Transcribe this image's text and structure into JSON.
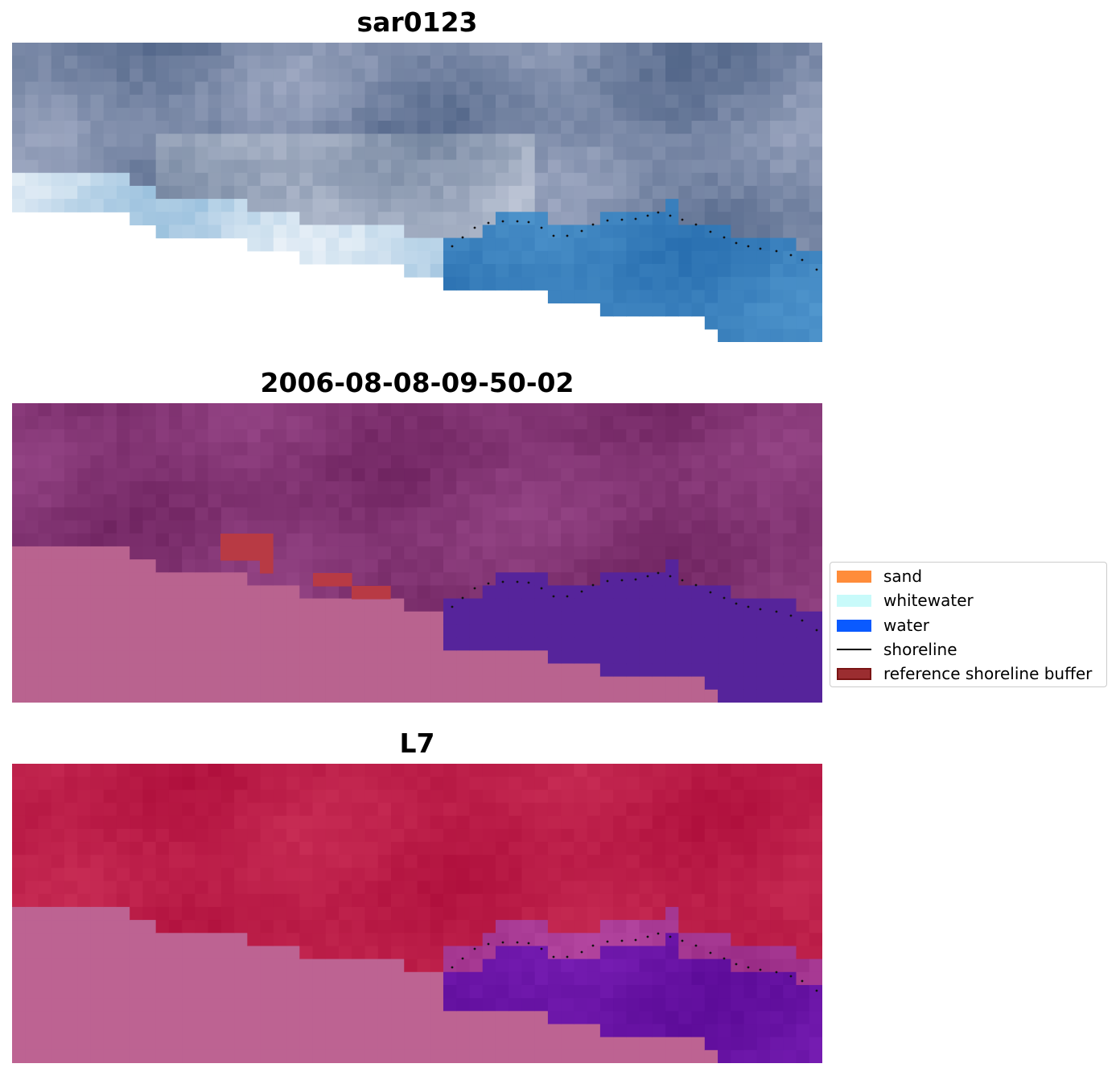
{
  "panels": [
    {
      "title": "sar0123",
      "kind": "rgb"
    },
    {
      "title": "2006-08-08-09-50-02",
      "kind": "classified"
    },
    {
      "title": "L7",
      "kind": "index"
    }
  ],
  "legend": {
    "items": [
      {
        "label": "sand",
        "color": "#ff8c3a",
        "kind": "patch"
      },
      {
        "label": "whitewater",
        "color": "#c8fafa",
        "kind": "patch"
      },
      {
        "label": "water",
        "color": "#0a5aff",
        "kind": "patch"
      },
      {
        "label": "shoreline",
        "color": "#000000",
        "kind": "line"
      },
      {
        "label": "reference shoreline buffer",
        "color": "#9b2d30",
        "edge": "#7a1414",
        "kind": "patch"
      }
    ]
  },
  "colors": {
    "no_data_fill_panel2": "#b9638f",
    "no_data_fill_panel3": "#bd6392",
    "water_class": "#56249b",
    "buffer": "#b83a44",
    "index_land": "#b81c46",
    "index_water": "#6410a0"
  }
}
